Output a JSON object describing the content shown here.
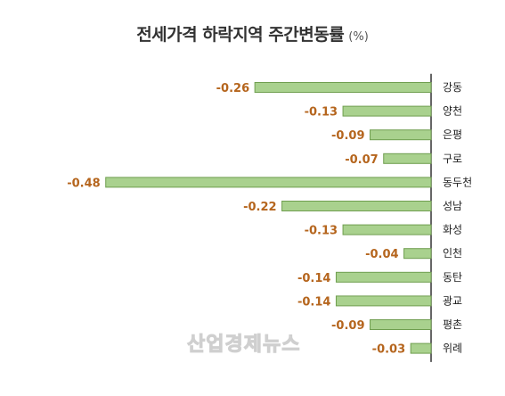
{
  "chart_data": {
    "type": "bar",
    "orientation": "horizontal",
    "title": "전세가격 하락지역 주간변동률",
    "title_unit": "(%)",
    "categories": [
      "강동",
      "양천",
      "은평",
      "구로",
      "동두천",
      "성남",
      "화성",
      "인천",
      "동탄",
      "광교",
      "평촌",
      "위례"
    ],
    "values": [
      -0.26,
      -0.13,
      -0.09,
      -0.07,
      -0.48,
      -0.22,
      -0.13,
      -0.04,
      -0.14,
      -0.14,
      -0.09,
      -0.03
    ],
    "value_labels": [
      "-0.26",
      "-0.13",
      "-0.09",
      "-0.07",
      "-0.48",
      "-0.22",
      "-0.13",
      "-0.04",
      "-0.14",
      "-0.14",
      "-0.09",
      "-0.03"
    ],
    "xlim": [
      -0.5,
      0
    ],
    "grid": false,
    "bar_color": "#a9d18e",
    "label_color": "#b5651d"
  },
  "watermark": "산업경제뉴스"
}
